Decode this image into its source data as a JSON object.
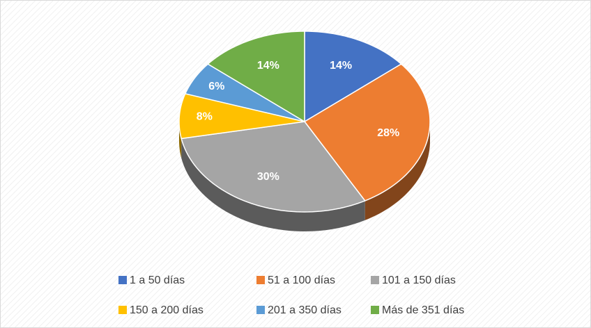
{
  "chart_data": {
    "type": "pie",
    "categories": [
      "1 a 50 días",
      "51 a 100 días",
      "101 a 150 días",
      "150 a 200 días",
      "201 a 350 días",
      "Más de 351 días"
    ],
    "values": [
      14,
      28,
      30,
      8,
      6,
      14
    ],
    "value_labels": [
      "14%",
      "28%",
      "30%",
      "8%",
      "6%",
      "14%"
    ],
    "colors": [
      "#4472c4",
      "#ed7d31",
      "#a5a5a5",
      "#ffc000",
      "#5b9bd5",
      "#70ad47"
    ],
    "label_colors": [
      "#ffffff",
      "#ffffff",
      "#ffffff",
      "#ffffff",
      "#ffffff",
      "#ffffff"
    ],
    "legend": "bottom"
  }
}
